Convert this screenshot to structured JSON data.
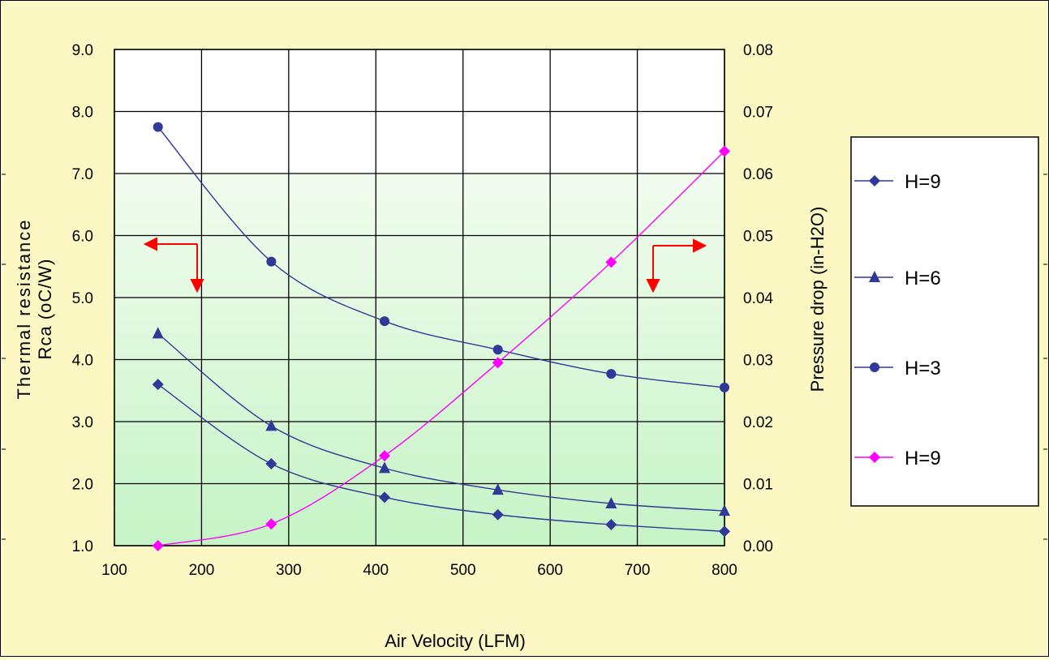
{
  "chart_data": {
    "type": "line",
    "title": "",
    "xlabel": "Air Velocity (LFM)",
    "ylabel_left_line1": "Thermal resistance",
    "ylabel_left_line2": "Rca (oC/W)",
    "ylabel_right": "Pressure drop (in-H2O)",
    "xlim": [
      100,
      800
    ],
    "ylim_left": [
      1.0,
      9.0
    ],
    "ylim_right": [
      0.0,
      0.08
    ],
    "x_ticks": [
      "100",
      "200",
      "300",
      "400",
      "500",
      "600",
      "700",
      "800"
    ],
    "y_left_ticks": [
      "1.0",
      "2.0",
      "3.0",
      "4.0",
      "5.0",
      "6.0",
      "7.0",
      "8.0",
      "9.0"
    ],
    "y_right_ticks": [
      "0.00",
      "0.01",
      "0.02",
      "0.03",
      "0.04",
      "0.05",
      "0.06",
      "0.07",
      "0.08"
    ],
    "grid": true,
    "legend_position": "right",
    "series": [
      {
        "name": "H=9",
        "axis": "left",
        "marker": "diamond",
        "color": "#303898",
        "x": [
          150,
          280,
          410,
          540,
          670,
          800
        ],
        "values": [
          3.6,
          2.32,
          1.78,
          1.5,
          1.34,
          1.23
        ]
      },
      {
        "name": "H=6",
        "axis": "left",
        "marker": "triangle",
        "color": "#303898",
        "x": [
          150,
          280,
          410,
          540,
          670,
          800
        ],
        "values": [
          4.42,
          2.93,
          2.25,
          1.9,
          1.68,
          1.56
        ]
      },
      {
        "name": "H=3",
        "axis": "left",
        "marker": "circle",
        "color": "#303898",
        "x": [
          150,
          280,
          410,
          540,
          670,
          800
        ],
        "values": [
          7.75,
          5.58,
          4.62,
          4.16,
          3.77,
          3.55
        ]
      },
      {
        "name": "H=9",
        "axis": "right",
        "marker": "diamond",
        "color": "#ff00ff",
        "x": [
          150,
          280,
          410,
          540,
          670,
          800
        ],
        "values": [
          0.0,
          0.0035,
          0.0145,
          0.0295,
          0.0457,
          0.0636
        ]
      }
    ],
    "annotations": [
      "left-axis indicator arrow",
      "right-axis indicator arrow"
    ],
    "colors": {
      "plot_top": "#ffffff",
      "plot_bottom": "#c8f5c8",
      "frame_bg": "#fcf8c4",
      "arrow": "#ff0000"
    }
  }
}
